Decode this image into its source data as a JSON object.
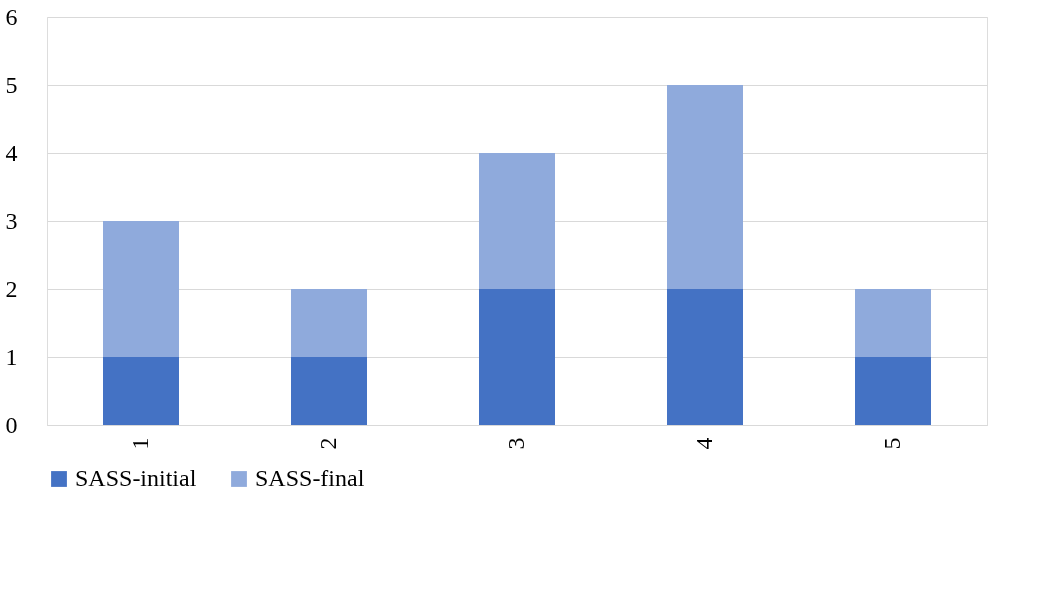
{
  "chart_data": {
    "type": "bar",
    "stacked": true,
    "categories": [
      "1",
      "2",
      "3",
      "4",
      "5"
    ],
    "series": [
      {
        "name": "SASS-initial",
        "color": "#4472c4",
        "values": [
          1,
          1,
          2,
          2,
          1
        ]
      },
      {
        "name": "SASS-final",
        "color": "#8faadc",
        "values": [
          2,
          1,
          2,
          3,
          1
        ]
      }
    ],
    "ylim": [
      0,
      6
    ],
    "yticks": [
      0,
      1,
      2,
      3,
      4,
      5,
      6
    ],
    "grid": "y",
    "legend": "bottom"
  }
}
